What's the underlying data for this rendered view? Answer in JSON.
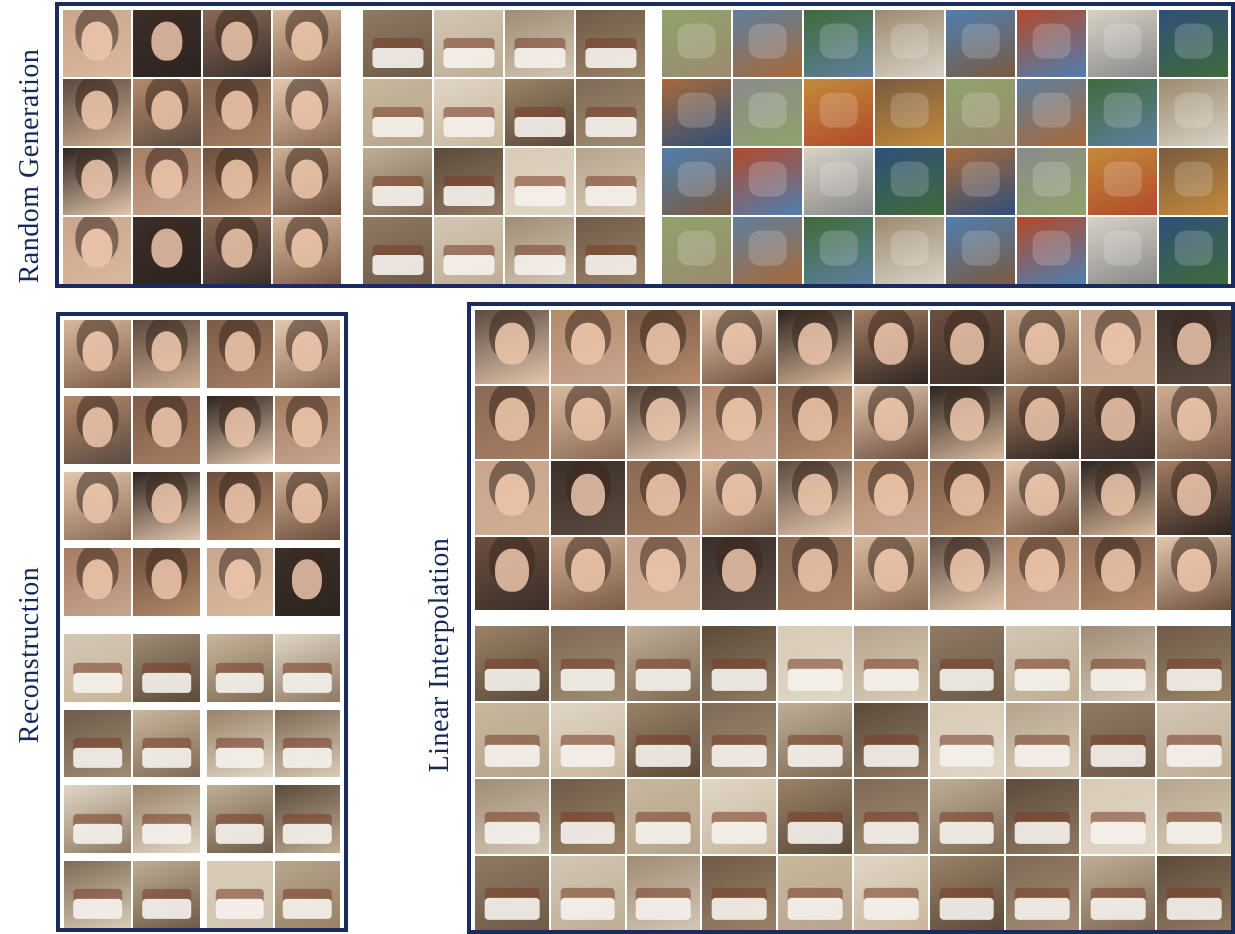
{
  "labels": {
    "random_generation": "Random Generation",
    "reconstruction": "Reconstruction",
    "linear_interpolation": "Linear Interpolation"
  },
  "colors": {
    "frame": "#1a2b5e",
    "label": "#16295a",
    "face_palette": [
      "#c9a58f",
      "#3a2f2a",
      "#8a6a55",
      "#d9b99b",
      "#5b4a40",
      "#b48a6a",
      "#7c5c48",
      "#e3c7ad",
      "#2d2420",
      "#a57d62",
      "#6d4f3e",
      "#cfae92"
    ],
    "room_palette": [
      "#b6a58d",
      "#8f7a62",
      "#d2c6b4",
      "#a08c74",
      "#6e5b48",
      "#c9b79c",
      "#e0d6c6",
      "#9a8266",
      "#7f6a55",
      "#bfae95",
      "#5c4a3a",
      "#d8cbb6"
    ],
    "object_palette": [
      "#c28b3a",
      "#7a5a40",
      "#8fa36a",
      "#5e7f9e",
      "#3f6b3a",
      "#9c8a6e",
      "#4f7fb0",
      "#b24a2a",
      "#d8d2c6",
      "#2f4f7a",
      "#a86a3a",
      "#8a8a8a"
    ]
  },
  "random_generation": {
    "faces": {
      "rows": 4,
      "cols": 4
    },
    "rooms": {
      "rows": 4,
      "cols": 4
    },
    "objects": {
      "rows": 4,
      "cols": 8
    }
  },
  "reconstruction": {
    "face_pairs": {
      "rows": 4,
      "cols": 2
    },
    "room_pairs": {
      "rows": 4,
      "cols": 2
    }
  },
  "linear_interpolation": {
    "face_rows": 4,
    "room_rows": 4,
    "steps": 10
  }
}
